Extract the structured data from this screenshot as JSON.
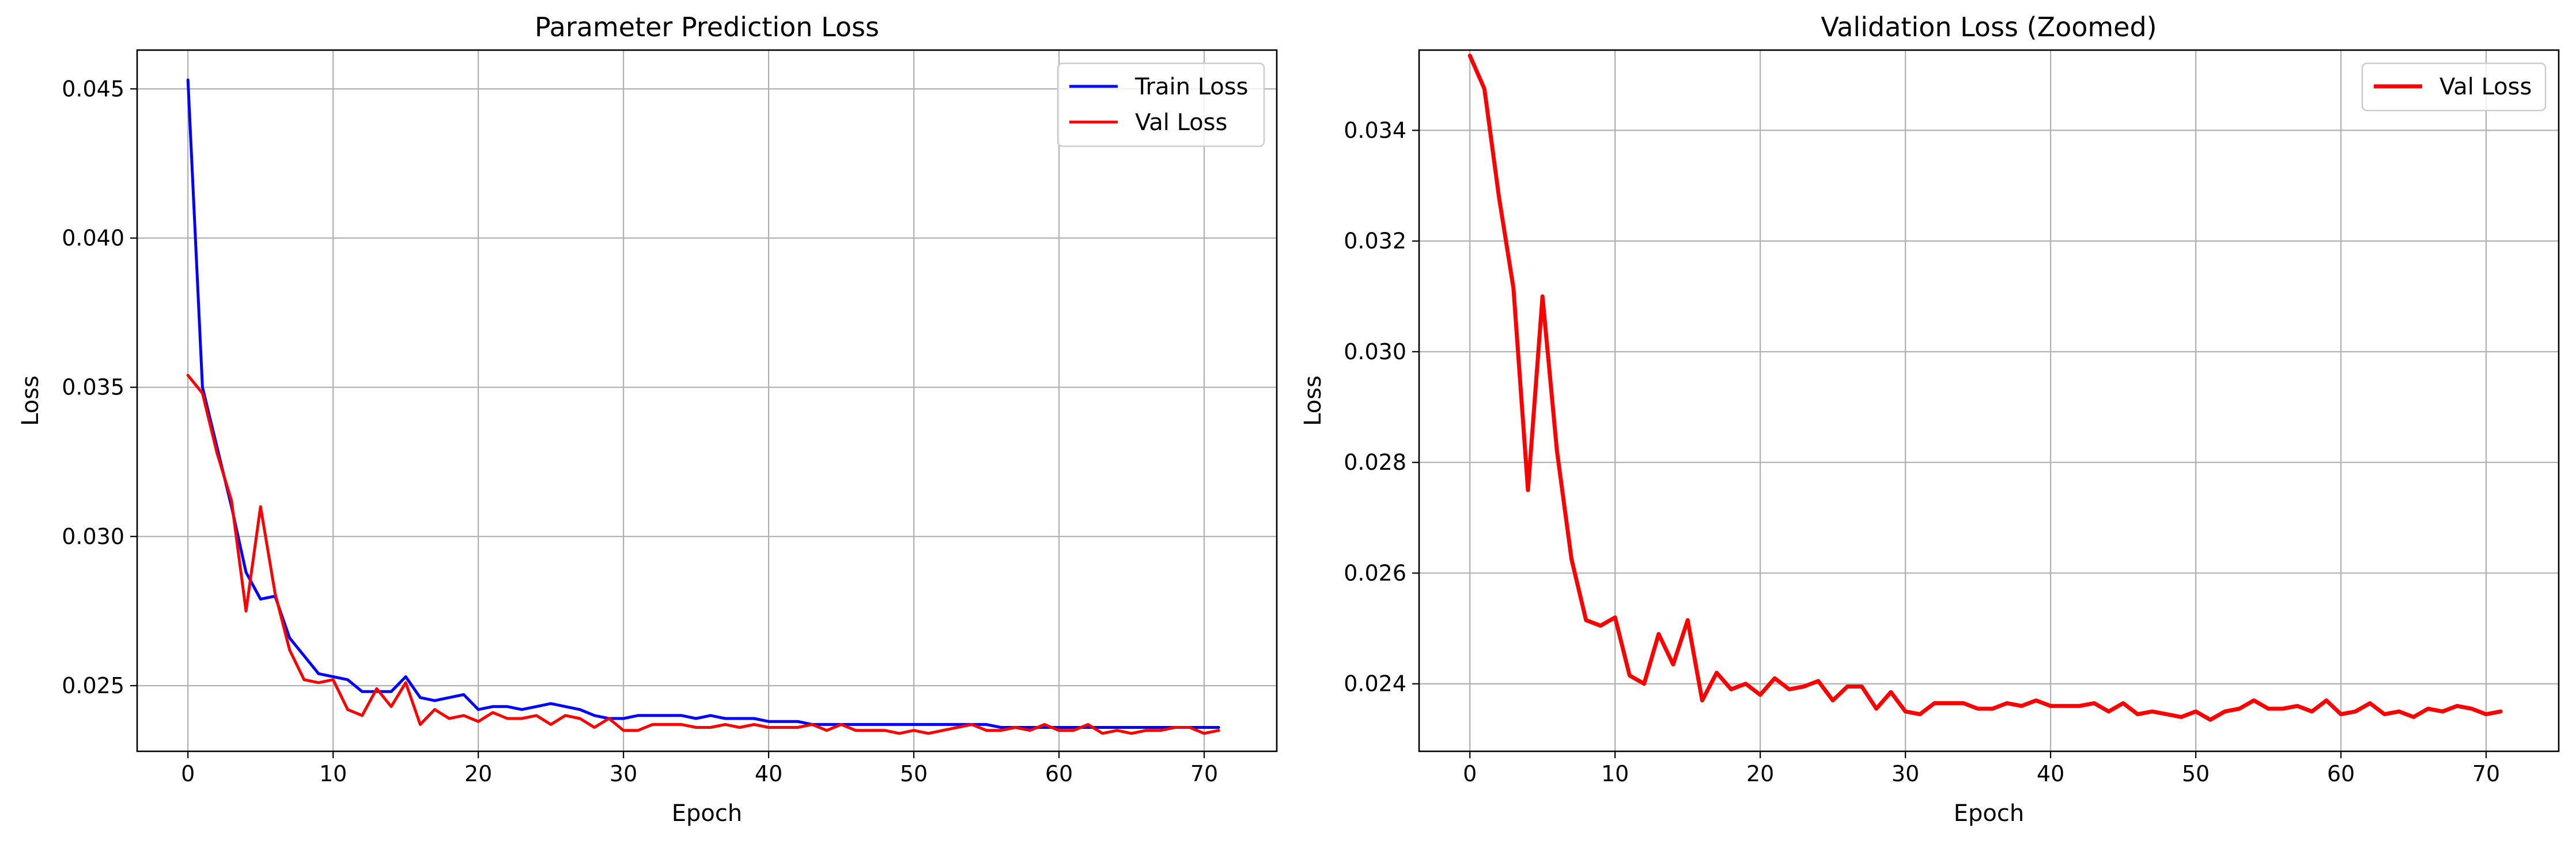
{
  "chart_data": [
    {
      "type": "line",
      "title": "Parameter Prediction Loss",
      "xlabel": "Epoch",
      "ylabel": "Loss",
      "xlim": [
        -3.5,
        75
      ],
      "ylim": [
        0.0228,
        0.0463
      ],
      "xticks": [
        0,
        10,
        20,
        30,
        40,
        50,
        60,
        70
      ],
      "yticks": [
        0.025,
        0.03,
        0.035,
        0.04,
        0.045
      ],
      "ytick_labels": [
        "0.025",
        "0.030",
        "0.035",
        "0.040",
        "0.045"
      ],
      "grid": true,
      "legend": "top-right",
      "series": [
        {
          "name": "Train Loss",
          "color": "#0000ff",
          "x": [
            0,
            1,
            2,
            3,
            4,
            5,
            6,
            7,
            8,
            9,
            10,
            11,
            12,
            13,
            14,
            15,
            16,
            17,
            18,
            19,
            20,
            21,
            22,
            23,
            24,
            25,
            26,
            27,
            28,
            29,
            30,
            31,
            32,
            33,
            34,
            35,
            36,
            37,
            38,
            39,
            40,
            41,
            42,
            43,
            44,
            45,
            46,
            47,
            48,
            49,
            50,
            51,
            52,
            53,
            54,
            55,
            56,
            57,
            58,
            59,
            60,
            61,
            62,
            63,
            64,
            65,
            66,
            67,
            68,
            69,
            70,
            71
          ],
          "y": [
            0.0453,
            0.035,
            0.033,
            0.031,
            0.0288,
            0.0279,
            0.028,
            0.0266,
            0.026,
            0.0254,
            0.0253,
            0.0252,
            0.0248,
            0.0248,
            0.0248,
            0.0253,
            0.0246,
            0.0245,
            0.0246,
            0.0247,
            0.0242,
            0.0243,
            0.0243,
            0.0242,
            0.0243,
            0.0244,
            0.0243,
            0.0242,
            0.024,
            0.0239,
            0.0239,
            0.024,
            0.024,
            0.024,
            0.024,
            0.0239,
            0.024,
            0.0239,
            0.0239,
            0.0239,
            0.0238,
            0.0238,
            0.0238,
            0.0237,
            0.0237,
            0.0237,
            0.0237,
            0.0237,
            0.0237,
            0.0237,
            0.0237,
            0.0237,
            0.0237,
            0.0237,
            0.0237,
            0.0237,
            0.0236,
            0.0236,
            0.0236,
            0.0236,
            0.0236,
            0.0236,
            0.0236,
            0.0236,
            0.0236,
            0.0236,
            0.0236,
            0.0236,
            0.0236,
            0.0236,
            0.0236,
            0.0236
          ]
        },
        {
          "name": "Val Loss",
          "color": "#ff0000",
          "x": [
            0,
            1,
            2,
            3,
            4,
            5,
            6,
            7,
            8,
            9,
            10,
            11,
            12,
            13,
            14,
            15,
            16,
            17,
            18,
            19,
            20,
            21,
            22,
            23,
            24,
            25,
            26,
            27,
            28,
            29,
            30,
            31,
            32,
            33,
            34,
            35,
            36,
            37,
            38,
            39,
            40,
            41,
            42,
            43,
            44,
            45,
            46,
            47,
            48,
            49,
            50,
            51,
            52,
            53,
            54,
            55,
            56,
            57,
            58,
            59,
            60,
            61,
            62,
            63,
            64,
            65,
            66,
            67,
            68,
            69,
            70,
            71
          ],
          "y": [
            0.0354,
            0.0348,
            0.0328,
            0.0312,
            0.0275,
            0.031,
            0.0281,
            0.0262,
            0.0252,
            0.0251,
            0.0252,
            0.0242,
            0.024,
            0.0249,
            0.0243,
            0.0251,
            0.0237,
            0.0242,
            0.0239,
            0.024,
            0.0238,
            0.0241,
            0.0239,
            0.0239,
            0.024,
            0.0237,
            0.024,
            0.0239,
            0.0236,
            0.0239,
            0.0235,
            0.0235,
            0.0237,
            0.0237,
            0.0237,
            0.0236,
            0.0236,
            0.0237,
            0.0236,
            0.0237,
            0.0236,
            0.0236,
            0.0236,
            0.0237,
            0.0235,
            0.0237,
            0.0235,
            0.0235,
            0.0235,
            0.0234,
            0.0235,
            0.0234,
            0.0235,
            0.0236,
            0.0237,
            0.0235,
            0.0235,
            0.0236,
            0.0235,
            0.0237,
            0.0235,
            0.0235,
            0.0237,
            0.0234,
            0.0235,
            0.0234,
            0.0235,
            0.0235,
            0.0236,
            0.0236,
            0.0234,
            0.0235
          ]
        }
      ]
    },
    {
      "type": "line",
      "title": "Validation Loss (Zoomed)",
      "xlabel": "Epoch",
      "ylabel": "Loss",
      "xlim": [
        -3.5,
        75
      ],
      "ylim": [
        0.02278,
        0.03545
      ],
      "xticks": [
        0,
        10,
        20,
        30,
        40,
        50,
        60,
        70
      ],
      "yticks": [
        0.024,
        0.026,
        0.028,
        0.03,
        0.032,
        0.034
      ],
      "ytick_labels": [
        "0.024",
        "0.026",
        "0.028",
        "0.030",
        "0.032",
        "0.034"
      ],
      "grid": true,
      "legend": "top-right",
      "series": [
        {
          "name": "Val Loss",
          "color": "#ff0000",
          "x": [
            0,
            1,
            2,
            3,
            4,
            5,
            6,
            7,
            8,
            9,
            10,
            11,
            12,
            13,
            14,
            15,
            16,
            17,
            18,
            19,
            20,
            21,
            22,
            23,
            24,
            25,
            26,
            27,
            28,
            29,
            30,
            31,
            32,
            33,
            34,
            35,
            36,
            37,
            38,
            39,
            40,
            41,
            42,
            43,
            44,
            45,
            46,
            47,
            48,
            49,
            50,
            51,
            52,
            53,
            54,
            55,
            56,
            57,
            58,
            59,
            60,
            61,
            62,
            63,
            64,
            65,
            66,
            67,
            68,
            69,
            70,
            71
          ],
          "y": [
            0.03535,
            0.03475,
            0.0328,
            0.03115,
            0.0275,
            0.031,
            0.0282,
            0.02625,
            0.02515,
            0.02505,
            0.0252,
            0.02415,
            0.024,
            0.0249,
            0.02435,
            0.02515,
            0.0237,
            0.0242,
            0.0239,
            0.024,
            0.0238,
            0.0241,
            0.0239,
            0.02395,
            0.02405,
            0.0237,
            0.02395,
            0.02395,
            0.02355,
            0.02385,
            0.0235,
            0.02345,
            0.02365,
            0.02365,
            0.02365,
            0.02355,
            0.02355,
            0.02365,
            0.0236,
            0.0237,
            0.0236,
            0.0236,
            0.0236,
            0.02365,
            0.0235,
            0.02365,
            0.02345,
            0.0235,
            0.02345,
            0.0234,
            0.0235,
            0.02335,
            0.0235,
            0.02355,
            0.0237,
            0.02355,
            0.02355,
            0.0236,
            0.0235,
            0.0237,
            0.02345,
            0.0235,
            0.02365,
            0.02345,
            0.0235,
            0.0234,
            0.02355,
            0.0235,
            0.0236,
            0.02355,
            0.02345,
            0.0235
          ]
        }
      ]
    }
  ]
}
